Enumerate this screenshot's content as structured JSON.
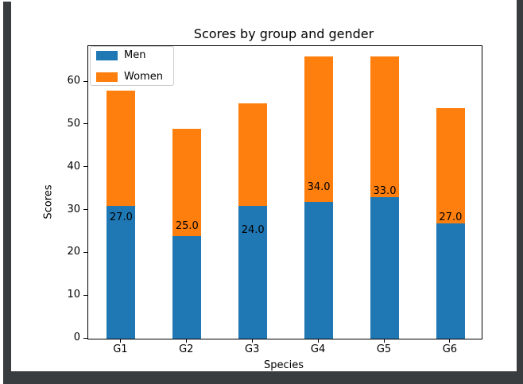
{
  "window": {
    "frame_color": "#3a3d40",
    "canvas_bg": "#ffffff"
  },
  "chart_data": {
    "type": "bar",
    "stacked": true,
    "title": "Scores by group and gender",
    "xlabel": "Species",
    "ylabel": "Scores",
    "categories": [
      "G1",
      "G2",
      "G3",
      "G4",
      "G5",
      "G6"
    ],
    "series": [
      {
        "name": "Men",
        "color": "#1f77b4",
        "values": [
          31,
          24,
          31,
          32,
          33,
          27
        ]
      },
      {
        "name": "Women",
        "color": "#ff7f0e",
        "values": [
          27,
          25,
          24,
          34,
          33,
          27
        ]
      }
    ],
    "totals": [
      58,
      49,
      55,
      66,
      66,
      54
    ],
    "bar_labels": [
      "27.0",
      "25.0",
      "24.0",
      "34.0",
      "33.0",
      "27.0"
    ],
    "yticks": [
      0,
      10,
      20,
      30,
      40,
      50,
      60
    ],
    "ylim": [
      0,
      68.4
    ],
    "grid": false,
    "legend": {
      "position": "upper left",
      "entries": [
        "Men",
        "Women"
      ]
    }
  }
}
